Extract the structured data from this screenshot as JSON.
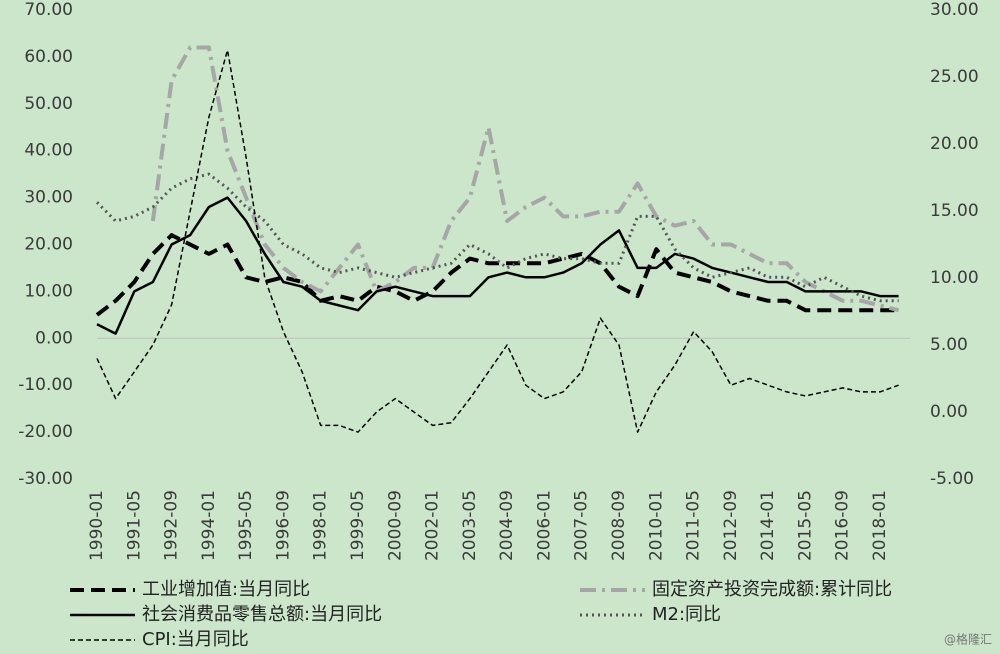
{
  "chart_data": {
    "type": "line",
    "x": [
      "1990-01",
      "1990-09",
      "1991-05",
      "1992-01",
      "1992-09",
      "1993-05",
      "1994-01",
      "1994-09",
      "1995-05",
      "1996-01",
      "1996-09",
      "1997-05",
      "1998-01",
      "1998-09",
      "1999-05",
      "2000-01",
      "2000-09",
      "2001-05",
      "2002-01",
      "2002-09",
      "2003-05",
      "2004-01",
      "2004-09",
      "2005-05",
      "2006-01",
      "2006-09",
      "2007-05",
      "2008-01",
      "2008-09",
      "2009-05",
      "2010-01",
      "2010-09",
      "2011-05",
      "2012-01",
      "2012-09",
      "2013-05",
      "2014-01",
      "2014-09",
      "2015-05",
      "2016-01",
      "2016-09",
      "2017-05",
      "2018-01",
      "2018-09"
    ],
    "xticks": [
      "1990-01",
      "1991-05",
      "1992-09",
      "1994-01",
      "1995-05",
      "1996-09",
      "1998-01",
      "1999-05",
      "2000-09",
      "2002-01",
      "2003-05",
      "2004-09",
      "2006-01",
      "2007-05",
      "2008-09",
      "2010-01",
      "2011-05",
      "2012-09",
      "2014-01",
      "2015-05",
      "2016-09",
      "2018-01"
    ],
    "ylim": [
      -30,
      70
    ],
    "yticks": [
      {
        "value": -30,
        "label": "-30.00"
      },
      {
        "value": -20,
        "label": "-20.00"
      },
      {
        "value": -10,
        "label": "-10.00"
      },
      {
        "value": 0,
        "label": "0.00"
      },
      {
        "value": 10,
        "label": "10.00"
      },
      {
        "value": 20,
        "label": "20.00"
      },
      {
        "value": 30,
        "label": "30.00"
      },
      {
        "value": 40,
        "label": "40.00"
      },
      {
        "value": 50,
        "label": "50.00"
      },
      {
        "value": 60,
        "label": "60.00"
      },
      {
        "value": 70,
        "label": "70.00"
      }
    ],
    "y2lim": [
      -5,
      30
    ],
    "y2ticks": [
      {
        "value": -5,
        "label": "-5.00"
      },
      {
        "value": 0,
        "label": "0.00"
      },
      {
        "value": 5,
        "label": "5.00"
      },
      {
        "value": 10,
        "label": "10.00"
      },
      {
        "value": 15,
        "label": "15.00"
      },
      {
        "value": 20,
        "label": "20.00"
      },
      {
        "value": 25,
        "label": "25.00"
      },
      {
        "value": 30,
        "label": "30.00"
      }
    ],
    "series": [
      {
        "name": "工业增加值:当月同比",
        "color": "#000000",
        "line_style": "thick-dashed",
        "values": [
          5,
          8,
          12,
          18,
          22,
          20,
          18,
          20,
          13,
          12,
          13,
          12,
          8,
          9,
          8,
          11,
          10,
          8,
          10,
          14,
          17,
          16,
          16,
          16,
          16,
          17,
          18,
          16,
          11,
          9,
          19,
          14,
          13,
          12,
          10,
          9,
          8,
          8,
          6,
          6,
          6,
          6,
          6,
          6
        ]
      },
      {
        "name": "固定资产投资完成额:累计同比",
        "color": "#a6a6a6",
        "line_style": "dash-dot",
        "values": [
          null,
          null,
          null,
          25,
          55,
          62,
          62,
          40,
          30,
          20,
          15,
          12,
          10,
          15,
          20,
          10,
          12,
          15,
          15,
          25,
          30,
          45,
          25,
          28,
          30,
          26,
          26,
          27,
          27,
          33,
          26,
          24,
          25,
          20,
          20,
          18,
          16,
          16,
          12,
          10,
          8,
          8,
          7,
          6
        ]
      },
      {
        "name": "社会消费品零售总额:当月同比",
        "color": "#000000",
        "line_style": "solid",
        "values": [
          3,
          1,
          10,
          12,
          20,
          22,
          28,
          30,
          25,
          18,
          12,
          11,
          8,
          7,
          6,
          10,
          11,
          10,
          9,
          9,
          9,
          13,
          14,
          13,
          13,
          14,
          16,
          20,
          23,
          15,
          15,
          18,
          17,
          15,
          14,
          13,
          12,
          12,
          10,
          10,
          10,
          10,
          9,
          9
        ]
      },
      {
        "name": "M2:同比",
        "color": "#555555",
        "line_style": "dotted",
        "values": [
          29,
          25,
          26,
          28,
          32,
          34,
          35,
          32,
          28,
          25,
          20,
          18,
          15,
          14,
          15,
          14,
          13,
          14,
          15,
          16,
          20,
          18,
          15,
          17,
          18,
          17,
          17,
          16,
          16,
          26,
          26,
          19,
          15,
          13,
          14,
          15,
          13,
          13,
          11,
          13,
          11,
          9,
          8,
          8
        ]
      },
      {
        "name": "CPI:当月同比",
        "color": "#000000",
        "line_style": "dashed",
        "axis": "y2",
        "values": [
          4,
          1,
          3,
          5,
          8,
          15,
          22,
          27,
          19,
          10,
          6,
          3,
          -1,
          -1,
          -1.5,
          0,
          1,
          0,
          -1,
          -0.8,
          1,
          3,
          5,
          2,
          1,
          1.5,
          3,
          7,
          5,
          -1.5,
          1.5,
          3.5,
          6,
          4.5,
          2,
          2.5,
          2,
          1.5,
          1.2,
          1.5,
          1.8,
          1.5,
          1.5,
          2
        ]
      }
    ],
    "watermark": "@格隆汇"
  }
}
